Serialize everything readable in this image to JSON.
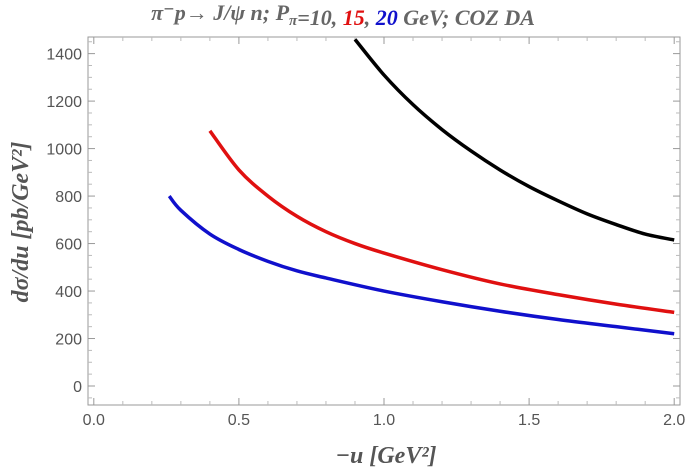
{
  "chart_data": {
    "type": "line",
    "title_parts": [
      {
        "text": "π⁻p→ J/ψ n;  P",
        "color": "#666666"
      },
      {
        "text": "π",
        "color": "#666666",
        "sub": true
      },
      {
        "text": "=10, ",
        "color": "#666666"
      },
      {
        "text": "15",
        "color": "#e01010"
      },
      {
        "text": ", ",
        "color": "#666666"
      },
      {
        "text": "20",
        "color": "#1010cc"
      },
      {
        "text": " GeV; COZ DA",
        "color": "#666666"
      }
    ],
    "xlabel": "−u [GeV²]",
    "ylabel": "dσ/du  [pb/GeV²]",
    "xlim": [
      -0.02,
      2.02
    ],
    "ylim": [
      -80,
      1470
    ],
    "xticks": [
      0.0,
      0.5,
      1.0,
      1.5,
      2.0
    ],
    "xtick_labels": [
      "0.0",
      "0.5",
      "1.0",
      "1.5",
      "2.0"
    ],
    "yticks": [
      0,
      200,
      400,
      600,
      800,
      1000,
      1200,
      1400
    ],
    "ytick_labels": [
      "0",
      "200",
      "400",
      "600",
      "800",
      "1000",
      "1200",
      "1400"
    ],
    "grid": false,
    "series": [
      {
        "color": "#000000",
        "x": [
          0.9,
          1.0,
          1.1,
          1.2,
          1.3,
          1.4,
          1.5,
          1.6,
          1.7,
          1.8,
          1.9,
          2.0
        ],
        "y": [
          1460,
          1310,
          1185,
          1080,
          990,
          910,
          840,
          780,
          725,
          680,
          640,
          615
        ]
      },
      {
        "color": "#e01010",
        "x": [
          0.4,
          0.5,
          0.6,
          0.7,
          0.8,
          0.9,
          1.0,
          1.2,
          1.4,
          1.6,
          1.8,
          2.0
        ],
        "y": [
          1075,
          910,
          800,
          715,
          650,
          600,
          560,
          490,
          430,
          385,
          345,
          310
        ]
      },
      {
        "color": "#1010cc",
        "x": [
          0.26,
          0.3,
          0.4,
          0.5,
          0.6,
          0.7,
          0.8,
          1.0,
          1.2,
          1.4,
          1.6,
          1.8,
          2.0
        ],
        "y": [
          800,
          740,
          640,
          575,
          525,
          485,
          455,
          400,
          355,
          315,
          280,
          250,
          220
        ]
      }
    ]
  }
}
